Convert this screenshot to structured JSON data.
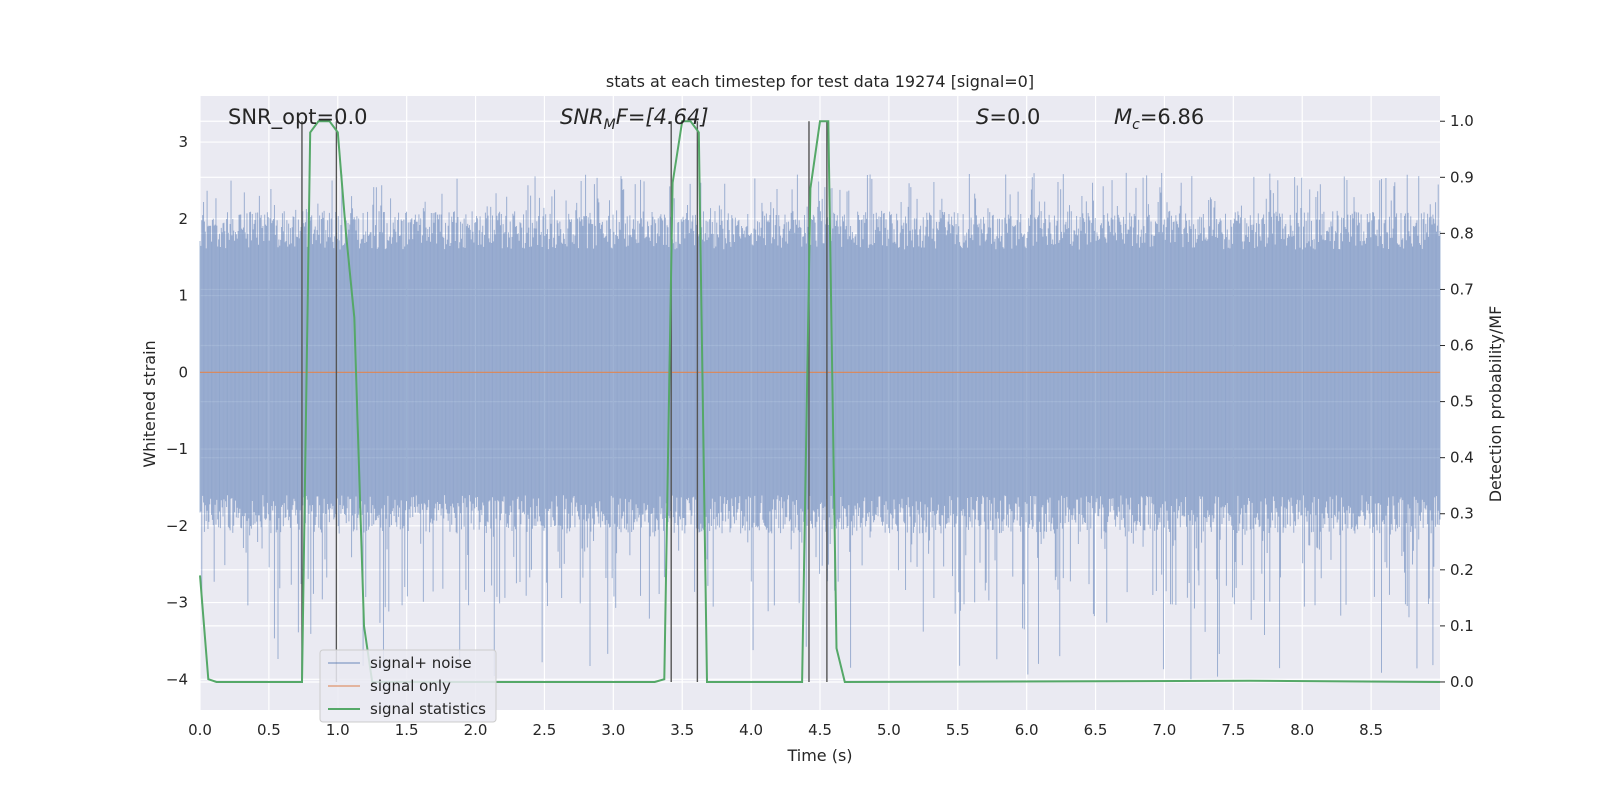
{
  "chart_data": {
    "type": "line",
    "title": "stats at each timestep for test data 19274 [signal=0]",
    "xlabel": "Time (s)",
    "ylabel": "Whitened strain",
    "ylabel_right": "Detection probability/MF",
    "xlim": [
      0.0,
      9.0
    ],
    "ylim": [
      -4.4,
      3.6
    ],
    "ylim_right": [
      -0.05,
      1.045
    ],
    "x_ticks": [
      0.0,
      0.5,
      1.0,
      1.5,
      2.0,
      2.5,
      3.0,
      3.5,
      4.0,
      4.5,
      5.0,
      5.5,
      6.0,
      6.5,
      7.0,
      7.5,
      8.0,
      8.5
    ],
    "x_tick_labels": [
      "0.0",
      "0.5",
      "1.0",
      "1.5",
      "2.0",
      "2.5",
      "3.0",
      "3.5",
      "4.0",
      "4.5",
      "5.0",
      "5.5",
      "6.0",
      "6.5",
      "7.0",
      "7.5",
      "8.0",
      "8.5"
    ],
    "y_ticks": [
      3,
      2,
      1,
      0,
      -1,
      -2,
      -3,
      -4
    ],
    "y_tick_labels": [
      "3",
      "2",
      "1",
      "0",
      "−1",
      "−2",
      "−3",
      "−4"
    ],
    "y_ticks_right": [
      1.0,
      0.9,
      0.8,
      0.7,
      0.6,
      0.5,
      0.4,
      0.3,
      0.2,
      0.1,
      0.0
    ],
    "y_tick_labels_right": [
      "1.0",
      "0.9",
      "0.8",
      "0.7",
      "0.6",
      "0.5",
      "0.4",
      "0.3",
      "0.2",
      "0.1",
      "0.0"
    ],
    "grid": true,
    "legend": {
      "placement": "lower-left",
      "entries": [
        "signal+ noise",
        "signal only",
        "signal statistics"
      ]
    },
    "annotations": {
      "snr_opt": "SNR_opt=0.0",
      "snr_mf_base": "SNR",
      "snr_mf_sub": "M",
      "snr_mf_rest": "F=[4.64]",
      "s_italic": "S",
      "s_value": "=0.0",
      "mc_base": "M",
      "mc_sub": "c",
      "mc_value": "=6.86"
    },
    "colors": {
      "noise": "#4c72b0",
      "signal_only": "#dd8452",
      "statistics": "#55a868",
      "markers": "#555555",
      "plot_bg": "#eaeaf2",
      "grid": "#ffffff"
    },
    "series": [
      {
        "name": "signal+ noise",
        "y_axis": "left",
        "description_values": "dense noise, typical range -2.5 to 2.5, extremes near -4.0 and 2.6",
        "envelope": {
          "typical_low": -1.6,
          "typical_high": 1.6,
          "peak_low": -4.0,
          "peak_high": 2.6
        }
      },
      {
        "name": "signal only",
        "y_axis": "left",
        "x": [
          0.0,
          9.0
        ],
        "y": [
          0.0,
          0.0
        ]
      },
      {
        "name": "signal statistics",
        "y_axis": "right",
        "x": [
          0.0,
          0.06,
          0.12,
          0.74,
          0.8,
          0.86,
          0.94,
          1.0,
          1.06,
          1.12,
          1.19,
          1.25,
          3.3,
          3.37,
          3.43,
          3.5,
          3.56,
          3.62,
          3.68,
          3.75,
          4.37,
          4.43,
          4.5,
          4.56,
          4.62,
          4.68,
          7.62,
          9.0
        ],
        "y": [
          0.19,
          0.005,
          0.0,
          0.0,
          0.98,
          1.0,
          1.0,
          0.98,
          0.8,
          0.65,
          0.1,
          0.0,
          0.0,
          0.005,
          0.89,
          1.0,
          1.0,
          0.98,
          0.0,
          0.0,
          0.0,
          0.88,
          1.0,
          1.0,
          0.06,
          0.0,
          0.002,
          0.0
        ]
      }
    ],
    "vertical_markers_x": [
      0.74,
      0.99,
      3.42,
      3.61,
      4.42,
      4.55
    ]
  }
}
